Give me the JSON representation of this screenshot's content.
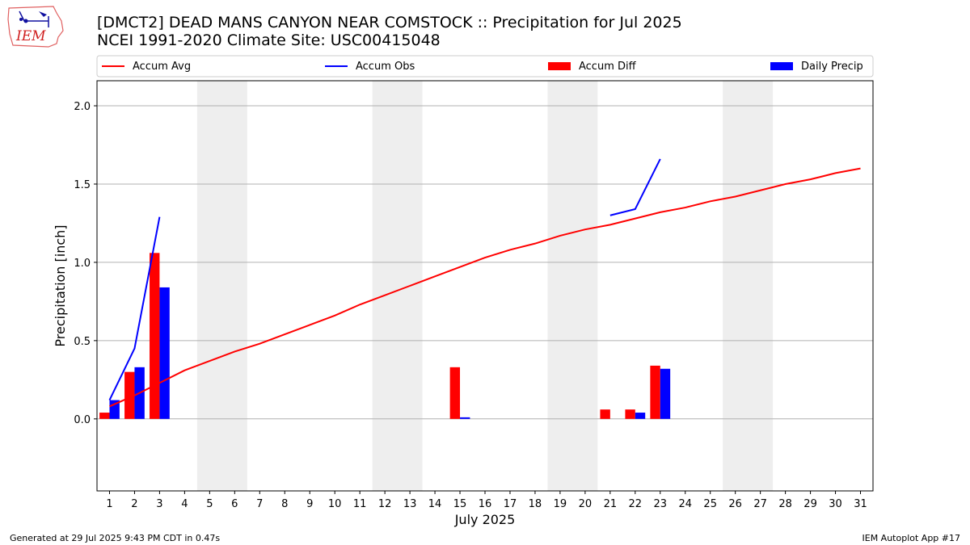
{
  "header": {
    "title_line1": "[DMCT2] DEAD MANS CANYON NEAR COMSTOCK :: Precipitation for Jul 2025",
    "title_line2": "NCEI 1991-2020 Climate Site: USC00415048",
    "logo_text": "IEM"
  },
  "footer": {
    "generated": "Generated at 29 Jul 2025 9:43 PM CDT in 0.47s",
    "app": "IEM Autoplot App #17"
  },
  "colors": {
    "avg": "#ff0000",
    "obs": "#0000ff",
    "diff": "#ff0000",
    "daily": "#0000ff",
    "weekend_shade": "#eeeeee",
    "grid": "#b0b0b0"
  },
  "chart_data": {
    "type": "bar",
    "xlabel": "July 2025",
    "ylabel": "Precipitation [inch]",
    "xlim": [
      0.5,
      31.5
    ],
    "ylim": [
      -0.46,
      2.16
    ],
    "yticks": [
      0.0,
      0.5,
      1.0,
      1.5,
      2.0
    ],
    "ytick_labels": [
      "0.0",
      "0.5",
      "1.0",
      "1.5",
      "2.0"
    ],
    "days": [
      1,
      2,
      3,
      4,
      5,
      6,
      7,
      8,
      9,
      10,
      11,
      12,
      13,
      14,
      15,
      16,
      17,
      18,
      19,
      20,
      21,
      22,
      23,
      24,
      25,
      26,
      27,
      28,
      29,
      30,
      31
    ],
    "weekends": [
      [
        5,
        6
      ],
      [
        12,
        13
      ],
      [
        19,
        20
      ],
      [
        26,
        27
      ]
    ],
    "grid": "horizontal",
    "legend": {
      "placement": "top",
      "entries": [
        "Accum Avg",
        "Accum Obs",
        "Accum Diff",
        "Daily Precip"
      ]
    },
    "series": [
      {
        "name": "Accum Avg",
        "kind": "line",
        "x": [
          1,
          2,
          3,
          4,
          5,
          6,
          7,
          8,
          9,
          10,
          11,
          12,
          13,
          14,
          15,
          16,
          17,
          18,
          19,
          20,
          21,
          22,
          23,
          24,
          25,
          26,
          27,
          28,
          29,
          30,
          31
        ],
        "values": [
          0.08,
          0.15,
          0.23,
          0.31,
          0.37,
          0.43,
          0.48,
          0.54,
          0.6,
          0.66,
          0.73,
          0.79,
          0.85,
          0.91,
          0.97,
          1.03,
          1.08,
          1.12,
          1.17,
          1.21,
          1.24,
          1.28,
          1.32,
          1.35,
          1.39,
          1.42,
          1.46,
          1.5,
          1.53,
          1.57,
          1.6
        ]
      },
      {
        "name": "Accum Obs",
        "kind": "line",
        "segments": [
          {
            "x": [
              1,
              2,
              3
            ],
            "values": [
              0.12,
              0.45,
              1.29
            ]
          },
          {
            "x": [
              21,
              22,
              23
            ],
            "values": [
              1.3,
              1.34,
              1.66
            ]
          }
        ]
      },
      {
        "name": "Accum Diff",
        "kind": "bar",
        "x": [
          1,
          2,
          3,
          15,
          21,
          22,
          23
        ],
        "values": [
          0.04,
          0.3,
          1.06,
          0.33,
          0.06,
          0.06,
          0.34
        ]
      },
      {
        "name": "Daily Precip",
        "kind": "bar",
        "x": [
          1,
          2,
          3,
          15,
          22,
          23
        ],
        "values": [
          0.12,
          0.33,
          0.84,
          0.01,
          0.04,
          0.32
        ]
      }
    ]
  }
}
